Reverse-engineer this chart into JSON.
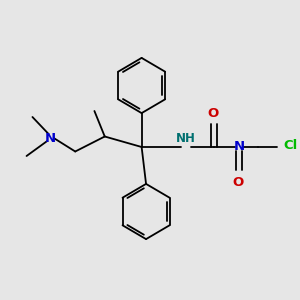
{
  "background_color": "#e6e6e6",
  "bond_color": "#000000",
  "bond_width": 1.3,
  "fig_width": 3.0,
  "fig_height": 3.0,
  "dpi": 100,
  "colors": {
    "N": "#0000cc",
    "O": "#cc0000",
    "Cl": "#00bb00",
    "NH": "#007070"
  }
}
